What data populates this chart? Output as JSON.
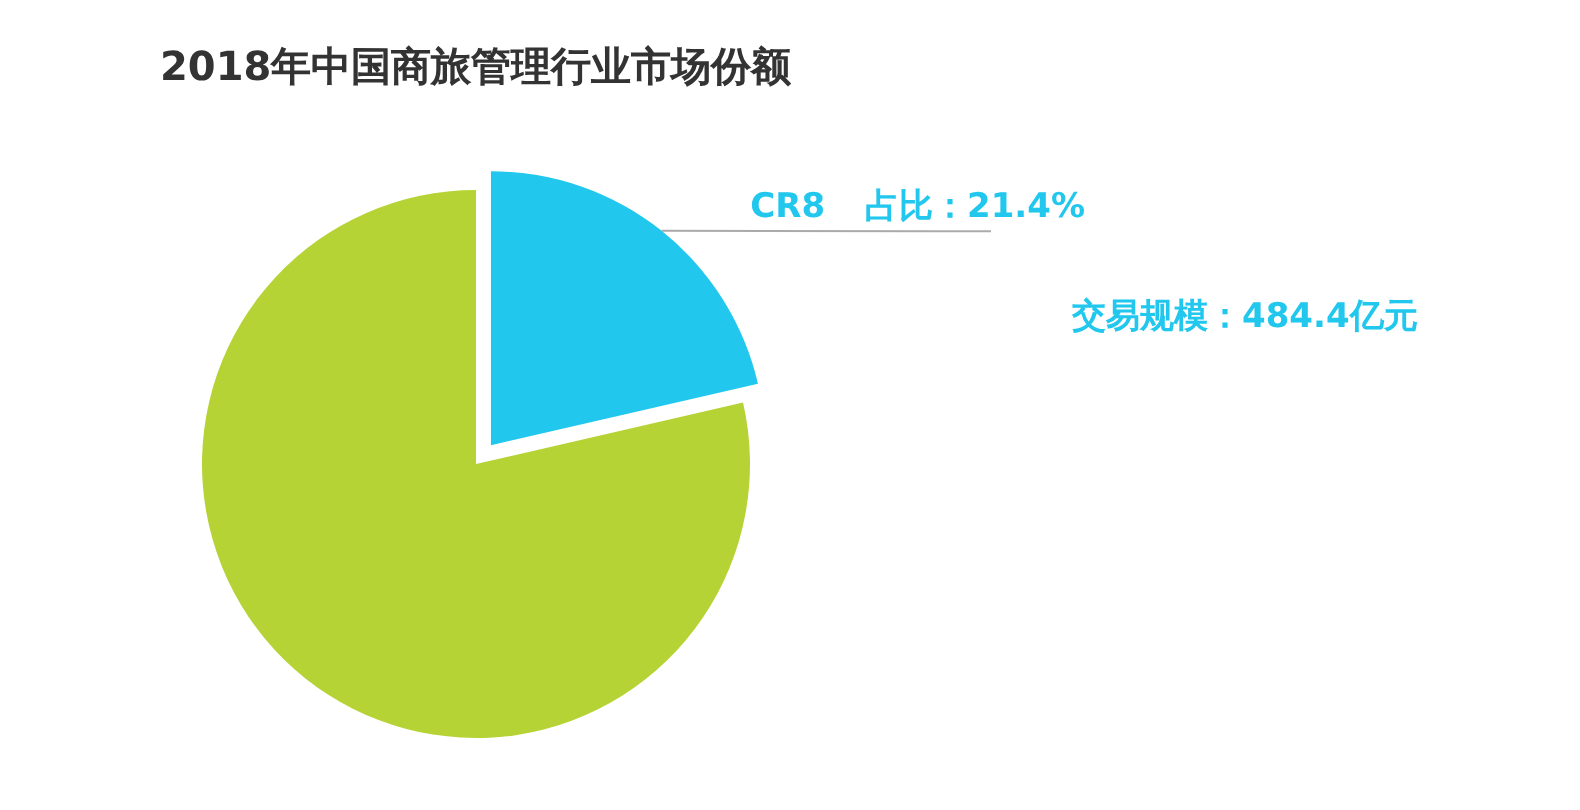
{
  "chart_data": {
    "type": "pie",
    "title": "2018年中国商旅管理行业市场份额",
    "categories": [
      "CR8",
      null
    ],
    "values": [
      21.4,
      78.6
    ],
    "colors": [
      "#22c7ee",
      "#b5d334"
    ],
    "value_labels": [
      "占比：21.4%",
      null
    ],
    "annotations": [
      "交易规模：484.4亿元"
    ],
    "legend": false
  }
}
